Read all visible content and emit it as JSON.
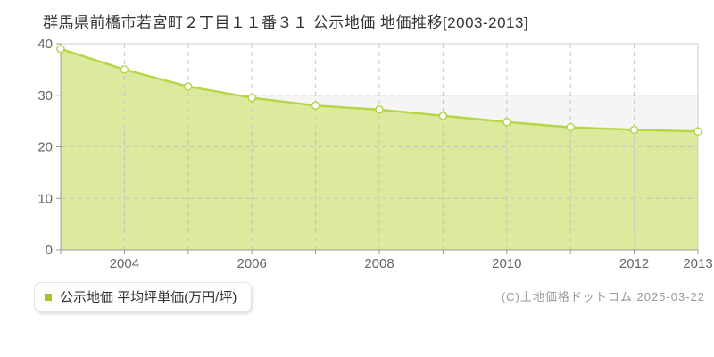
{
  "title": "群馬県前橋市若宮町２丁目１１番３１ 公示地価 地価推移[2003-2013]",
  "legend": {
    "label": "公示地価 平均坪単価(万円/坪)",
    "marker_color": "#a3c521"
  },
  "copyright": "(C)土地価格ドットコム 2025-03-22",
  "chart_data": {
    "type": "area",
    "title": "群馬県前橋市若宮町２丁目１１番３１ 公示地価 地価推移[2003-2013]",
    "x": [
      2003,
      2004,
      2005,
      2006,
      2007,
      2008,
      2009,
      2010,
      2011,
      2012,
      2013
    ],
    "series": [
      {
        "name": "公示地価 平均坪単価(万円/坪)",
        "values": [
          39.0,
          35.0,
          31.7,
          29.5,
          28.0,
          27.2,
          26.0,
          24.8,
          23.8,
          23.3,
          23.0
        ]
      }
    ],
    "xlabel": "",
    "ylabel": "万円/坪",
    "ylim": [
      0,
      40
    ],
    "yticks": [
      0,
      10,
      20,
      30,
      40
    ],
    "labeled_years": [
      2004,
      2006,
      2008,
      2010,
      2012,
      2013
    ],
    "grid": true,
    "legend_position": "bottom-left",
    "colors": {
      "line": "#b5d647",
      "fill": "#dcea9e",
      "marker_fill": "#ffffff",
      "grid": "#c3c3c3",
      "border": "#cccccc",
      "axis": "#999999",
      "band": "#f5f5f5",
      "tick_text": "#666666"
    }
  }
}
